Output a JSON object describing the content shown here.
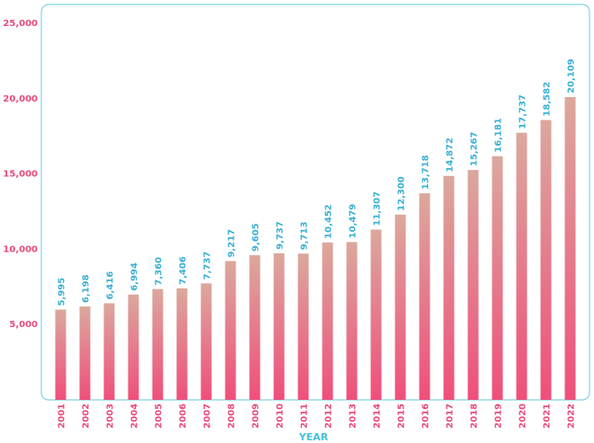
{
  "chart_data": {
    "type": "bar",
    "title": "",
    "xlabel": "YEAR",
    "ylabel": "",
    "ylim": [
      0,
      25000
    ],
    "yticks": [
      5000,
      10000,
      15000,
      20000,
      25000
    ],
    "ytick_labels": [
      "5,000",
      "10,000",
      "15,000",
      "20,000",
      "25,000"
    ],
    "categories": [
      "2001",
      "2002",
      "2003",
      "2004",
      "2005",
      "2006",
      "2007",
      "2008",
      "2009",
      "2010",
      "2011",
      "2012",
      "2013",
      "2014",
      "2015",
      "2016",
      "2017",
      "2018",
      "2019",
      "2020",
      "2021",
      "2022"
    ],
    "values": [
      5995,
      6198,
      6416,
      6994,
      7360,
      7406,
      7737,
      9217,
      9605,
      9737,
      9713,
      10452,
      10479,
      11307,
      12300,
      13718,
      14872,
      15267,
      16181,
      17737,
      18582,
      20109
    ],
    "value_labels": [
      "5,995",
      "6,198",
      "6,416",
      "6,994",
      "7,360",
      "7,406",
      "7,737",
      "9,217",
      "9,605",
      "9,737",
      "9,713",
      "10,452",
      "10,479",
      "11,307",
      "12,300",
      "13,718",
      "14,872",
      "15,267",
      "16,181",
      "17,737",
      "18,582",
      "20,109"
    ],
    "grid": false,
    "legend": "none"
  },
  "colors": {
    "frame": "#7fd3e2",
    "bar_top": "#dba89d",
    "bar_bottom": "#ef4f7b",
    "tick_label": "#e84a78",
    "value_label": "#3ab0d4",
    "axis_title": "#45c3dc"
  }
}
